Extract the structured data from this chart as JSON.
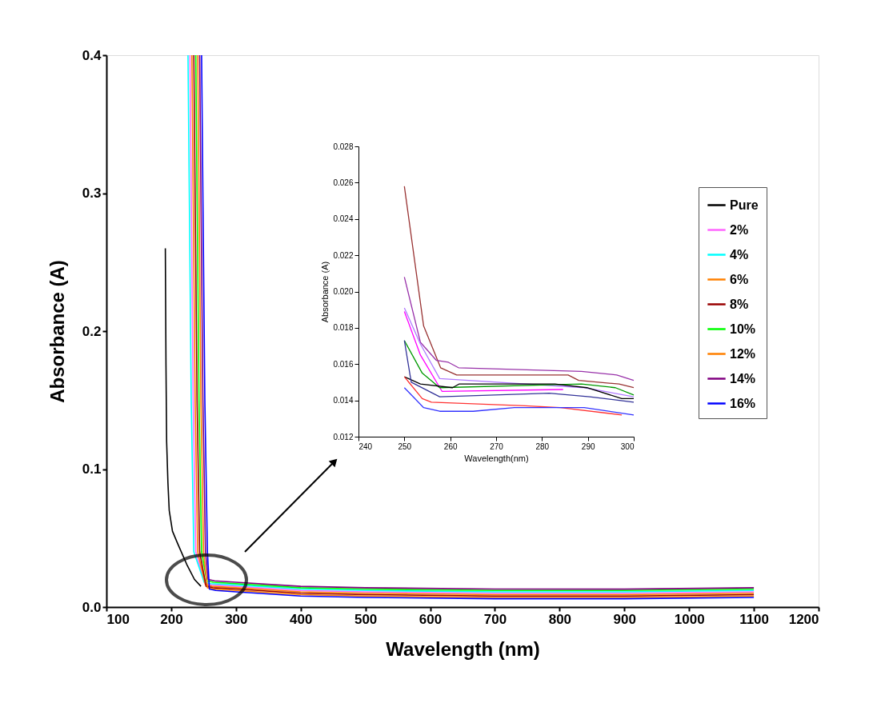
{
  "chart_data": [
    {
      "type": "line",
      "xlabel": "Wavelength (nm)",
      "ylabel": "Absorbance (A)",
      "xlim": [
        100,
        1200
      ],
      "xticks": [
        100,
        200,
        300,
        400,
        500,
        600,
        700,
        800,
        900,
        1000,
        1100,
        1200
      ],
      "ylim": [
        0,
        0.4
      ],
      "yticks": [
        {
          "value": 0,
          "label": "0.0"
        },
        0.1,
        0.2,
        0.3,
        0.4
      ],
      "legend": "right",
      "grid": false,
      "series": [
        {
          "name": "Pure",
          "color": "#000000",
          "x": [
            191,
            192,
            193,
            195,
            197,
            202,
            210,
            224,
            236,
            246
          ],
          "values": [
            0.26,
            0.175,
            0.12,
            0.09,
            0.07,
            0.055,
            0.046,
            0.031,
            0.02,
            0.015
          ]
        },
        {
          "name": "2%",
          "color": "#ff66ff",
          "x": [
            229,
            231,
            234,
            238,
            252,
            262,
            300,
            400,
            500,
            700,
            900,
            1100
          ],
          "values": [
            0.4,
            0.3,
            0.15,
            0.04,
            0.017,
            0.016,
            0.015,
            0.012,
            0.011,
            0.01,
            0.01,
            0.011
          ]
        },
        {
          "name": "4%",
          "color": "#00ffff",
          "x": [
            226,
            228,
            231,
            235,
            251,
            261,
            300,
            400,
            500,
            700,
            900,
            1100
          ],
          "values": [
            0.4,
            0.3,
            0.15,
            0.04,
            0.018,
            0.017,
            0.016,
            0.013,
            0.012,
            0.011,
            0.011,
            0.012
          ]
        },
        {
          "name": "6%",
          "color": "#ff8000",
          "x": [
            232,
            234,
            237,
            241,
            253,
            263,
            300,
            400,
            500,
            700,
            900,
            1100
          ],
          "values": [
            0.4,
            0.3,
            0.15,
            0.04,
            0.016,
            0.015,
            0.014,
            0.011,
            0.01,
            0.009,
            0.009,
            0.01
          ]
        },
        {
          "name": "8%",
          "color": "#990000",
          "x": [
            235,
            237,
            240,
            244,
            254,
            264,
            300,
            400,
            500,
            700,
            900,
            1100
          ],
          "values": [
            0.4,
            0.3,
            0.15,
            0.04,
            0.015,
            0.014,
            0.013,
            0.01,
            0.009,
            0.008,
            0.008,
            0.009
          ]
        },
        {
          "name": "10%",
          "color": "#00ff00",
          "x": [
            238,
            240,
            243,
            247,
            255,
            265,
            300,
            400,
            500,
            700,
            900,
            1100
          ],
          "values": [
            0.4,
            0.3,
            0.15,
            0.04,
            0.019,
            0.018,
            0.017,
            0.014,
            0.013,
            0.012,
            0.012,
            0.013
          ]
        },
        {
          "name": "12%",
          "color": "#ff8000",
          "x": [
            241,
            243,
            246,
            250,
            256,
            266,
            300,
            400,
            500,
            700,
            900,
            1100
          ],
          "values": [
            0.4,
            0.3,
            0.15,
            0.04,
            0.014,
            0.013,
            0.012,
            0.009,
            0.008,
            0.007,
            0.007,
            0.008
          ]
        },
        {
          "name": "14%",
          "color": "#800080",
          "x": [
            244,
            246,
            249,
            253,
            257,
            267,
            300,
            400,
            500,
            700,
            900,
            1100
          ],
          "values": [
            0.4,
            0.3,
            0.15,
            0.04,
            0.02,
            0.019,
            0.018,
            0.015,
            0.014,
            0.013,
            0.013,
            0.014
          ]
        },
        {
          "name": "16%",
          "color": "#0000ff",
          "x": [
            247,
            249,
            252,
            256,
            259,
            269,
            300,
            400,
            500,
            700,
            900,
            1100
          ],
          "values": [
            0.4,
            0.3,
            0.15,
            0.04,
            0.013,
            0.012,
            0.011,
            0.008,
            0.007,
            0.006,
            0.006,
            0.007
          ]
        }
      ]
    },
    {
      "type": "line",
      "xlabel": "Wavelength(nm)",
      "ylabel": "Absorbance (A)",
      "xlim": [
        240,
        300
      ],
      "xticks": [
        240,
        250,
        260,
        270,
        280,
        290,
        300
      ],
      "ylim": [
        0.012,
        0.028
      ],
      "yticks": [
        0.012,
        0.014,
        0.016,
        0.018,
        {
          "value": 0.02,
          "label": "0.020"
        },
        0.022,
        0.024,
        0.026,
        0.028
      ],
      "legend": false,
      "grid": false,
      "series": [
        {
          "color": "#993333",
          "x": [
            250,
            254.2,
            257.9,
            261.4,
            285.7,
            288,
            296.8,
            300
          ],
          "values": [
            0.0258,
            0.0181,
            0.0158,
            0.0154,
            0.0154,
            0.0151,
            0.0149,
            0.0147
          ]
        },
        {
          "color": "#9933aa",
          "x": [
            250,
            253.5,
            257,
            259.6,
            261.8,
            288.6,
            296.3,
            300
          ],
          "values": [
            0.0208,
            0.0172,
            0.0162,
            0.0161,
            0.0158,
            0.0156,
            0.0154,
            0.0151
          ]
        },
        {
          "color": "#b07aff",
          "x": [
            250,
            253.5,
            257.7,
            289.2,
            300
          ],
          "values": [
            0.0191,
            0.0171,
            0.0152,
            0.0147,
            0.0142
          ]
        },
        {
          "color": "#ff00ff",
          "x": [
            250,
            253.5,
            258.2,
            284.6
          ],
          "values": [
            0.0189,
            0.0165,
            0.0145,
            0.0146
          ]
        },
        {
          "color": "#009900",
          "x": [
            250,
            253.9,
            257.7,
            288.6,
            296,
            300
          ],
          "values": [
            0.0173,
            0.0155,
            0.0147,
            0.0149,
            0.0147,
            0.0143
          ]
        },
        {
          "color": "#000000",
          "x": [
            250,
            253.5,
            260.5,
            261.9,
            282.8,
            289.8,
            297.4,
            300
          ],
          "values": [
            0.0153,
            0.0149,
            0.0147,
            0.0149,
            0.0149,
            0.0147,
            0.0141,
            0.0141
          ]
        },
        {
          "color": "#333399",
          "x": [
            250,
            251.5,
            257.7,
            281.6,
            290.4,
            300
          ],
          "values": [
            0.0173,
            0.015,
            0.0142,
            0.0144,
            0.0142,
            0.0139
          ]
        },
        {
          "color": "#ff3333",
          "x": [
            250,
            253.9,
            255.9,
            276.3,
            284,
            297.4
          ],
          "values": [
            0.0153,
            0.0141,
            0.0139,
            0.0137,
            0.0136,
            0.0132
          ]
        },
        {
          "color": "#3333ff",
          "x": [
            250,
            254.2,
            257.7,
            265,
            274,
            289.2,
            300
          ],
          "values": [
            0.0147,
            0.0136,
            0.0134,
            0.0134,
            0.0136,
            0.0136,
            0.0132
          ]
        }
      ]
    }
  ]
}
